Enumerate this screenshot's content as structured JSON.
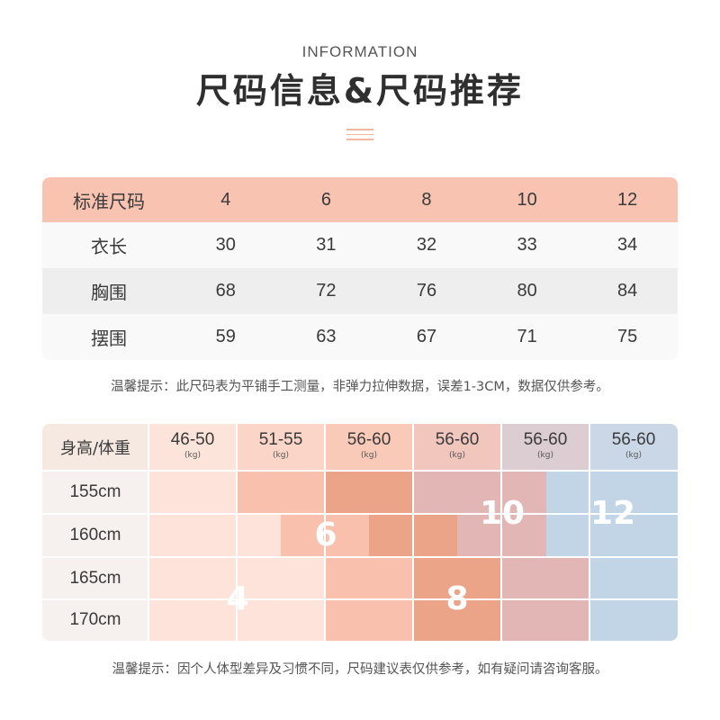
{
  "header": {
    "subtitle": "INFORMATION",
    "title": "尺码信息&尺码推荐"
  },
  "size_table": {
    "header": [
      "标准尺码",
      "4",
      "6",
      "8",
      "10",
      "12"
    ],
    "rows": [
      [
        "衣长",
        "30",
        "31",
        "32",
        "33",
        "34"
      ],
      [
        "胸围",
        "68",
        "72",
        "76",
        "80",
        "84"
      ],
      [
        "摆围",
        "59",
        "63",
        "67",
        "71",
        "75"
      ]
    ]
  },
  "note_size": "温馨提示：此尺码表为平铺手工测量，非弹力拉伸数据，误差1-3CM，数据仅供参考。",
  "recommend": {
    "corner": "身高/体重",
    "weights": [
      "46-50",
      "51-55",
      "56-60",
      "56-60",
      "56-60",
      "56-60"
    ],
    "unit": "(kg)",
    "heights": [
      "155cm",
      "160cm",
      "165cm",
      "170cm"
    ],
    "sizes": [
      "4",
      "6",
      "8",
      "10",
      "12"
    ],
    "colors": {
      "size4": "#fde3d9",
      "size6": "#f8c0ad",
      "size8": "#eca488",
      "size10": "#e2b6b5",
      "size12": "#c2d5e7",
      "header_gradient_start": "#fde3d8",
      "header_gradient_end": "#c9d7e7"
    }
  },
  "note_recommend": "温馨提示：因个人体型差异及习惯不同，尺码建议表仅供参考，如有疑问请咨询客服。"
}
